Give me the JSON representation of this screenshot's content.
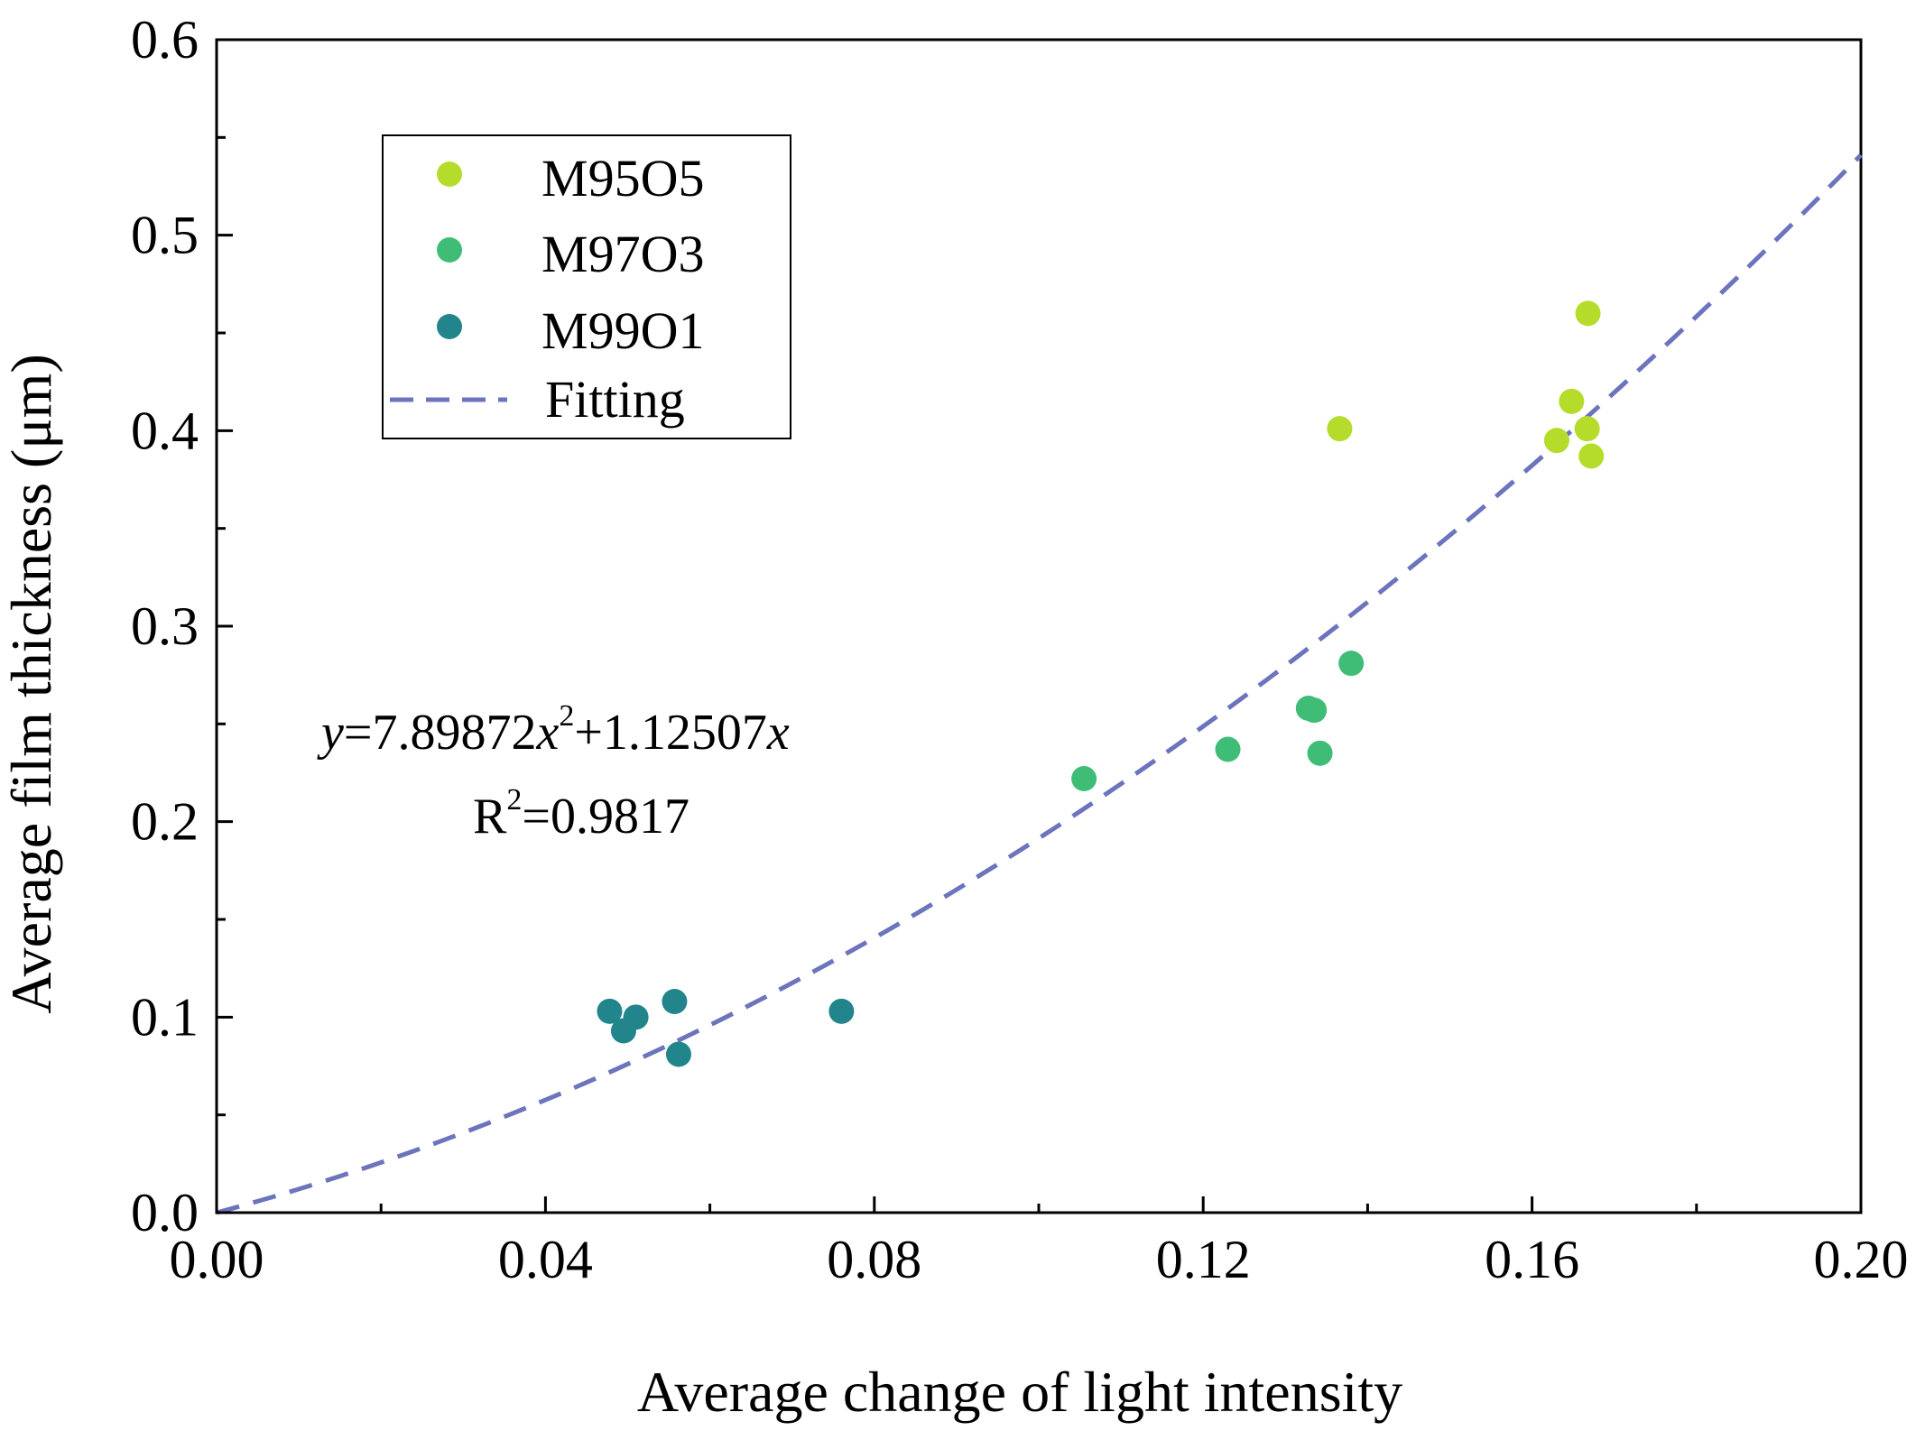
{
  "chart_data": {
    "type": "scatter",
    "title": "",
    "xlabel": "Average change of light  intensity",
    "ylabel": "Average film thickness (μm)",
    "xlim": [
      0.0,
      0.2
    ],
    "ylim": [
      0.0,
      0.6
    ],
    "x_ticks": [
      "0.00",
      "0.04",
      "0.08",
      "0.12",
      "0.16",
      "0.20"
    ],
    "y_ticks": [
      "0.0",
      "0.1",
      "0.2",
      "0.3",
      "0.4",
      "0.5",
      "0.6"
    ],
    "legend_position": "top-left",
    "grid": false,
    "series": [
      {
        "name": "M95O5",
        "color": "#b5dc2b",
        "points": [
          {
            "x": 0.1366,
            "y": 0.401
          },
          {
            "x": 0.163,
            "y": 0.395
          },
          {
            "x": 0.1648,
            "y": 0.415
          },
          {
            "x": 0.1668,
            "y": 0.46
          },
          {
            "x": 0.1667,
            "y": 0.401
          },
          {
            "x": 0.1672,
            "y": 0.387
          }
        ]
      },
      {
        "name": "M97O3",
        "color": "#3fbd77",
        "points": [
          {
            "x": 0.1055,
            "y": 0.222
          },
          {
            "x": 0.123,
            "y": 0.237
          },
          {
            "x": 0.1328,
            "y": 0.258
          },
          {
            "x": 0.1335,
            "y": 0.257
          },
          {
            "x": 0.1342,
            "y": 0.235
          },
          {
            "x": 0.138,
            "y": 0.281
          }
        ]
      },
      {
        "name": "M99O1",
        "color": "#21858b",
        "points": [
          {
            "x": 0.0478,
            "y": 0.103
          },
          {
            "x": 0.0495,
            "y": 0.093
          },
          {
            "x": 0.051,
            "y": 0.1
          },
          {
            "x": 0.0557,
            "y": 0.108
          },
          {
            "x": 0.0562,
            "y": 0.081
          },
          {
            "x": 0.076,
            "y": 0.103
          }
        ]
      }
    ],
    "fit": {
      "name": "Fitting",
      "color": "#6b74bd",
      "a": 7.89872,
      "b": 1.12507,
      "x_range": [
        0.0,
        0.2
      ]
    },
    "annotation": {
      "y_var": "y",
      "equals_coeff_a": "=7.89872",
      "x_var": "x",
      "exponent": "2",
      "plus_coeff_b": "+1.12507",
      "r_label": "R",
      "r_exponent": "2",
      "r_value": "=0.9817"
    }
  }
}
